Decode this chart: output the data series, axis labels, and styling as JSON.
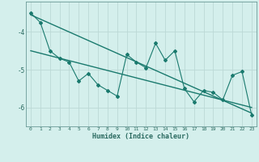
{
  "xlabel": "Humidex (Indice chaleur)",
  "x_values": [
    0,
    1,
    2,
    3,
    4,
    5,
    6,
    7,
    8,
    9,
    10,
    11,
    12,
    13,
    14,
    15,
    16,
    17,
    18,
    19,
    20,
    21,
    22,
    23
  ],
  "y_main": [
    -3.5,
    -3.75,
    -4.5,
    -4.7,
    -4.8,
    -5.3,
    -5.1,
    -5.4,
    -5.55,
    -5.7,
    -4.6,
    -4.8,
    -4.95,
    -4.3,
    -4.75,
    -4.5,
    -5.5,
    -5.85,
    -5.55,
    -5.6,
    -5.8,
    -5.15,
    -5.05,
    -6.2
  ],
  "trend1_x": [
    0,
    23
  ],
  "trend1_y": [
    -3.55,
    -6.15
  ],
  "trend2_x": [
    0,
    23
  ],
  "trend2_y": [
    -4.5,
    -6.0
  ],
  "ylim": [
    -6.5,
    -3.2
  ],
  "xlim": [
    -0.5,
    23.5
  ],
  "yticks": [
    -6,
    -5,
    -4
  ],
  "xticks": [
    0,
    1,
    2,
    3,
    4,
    5,
    6,
    7,
    8,
    9,
    10,
    11,
    12,
    13,
    14,
    15,
    16,
    17,
    18,
    19,
    20,
    21,
    22,
    23
  ],
  "line_color": "#1a7a6e",
  "bg_color": "#d4efec",
  "grid_color": "#bcd9d6",
  "plot_bg": "#d4efec",
  "axis_color": "#6a9a96",
  "tick_label_color": "#2a6a60"
}
